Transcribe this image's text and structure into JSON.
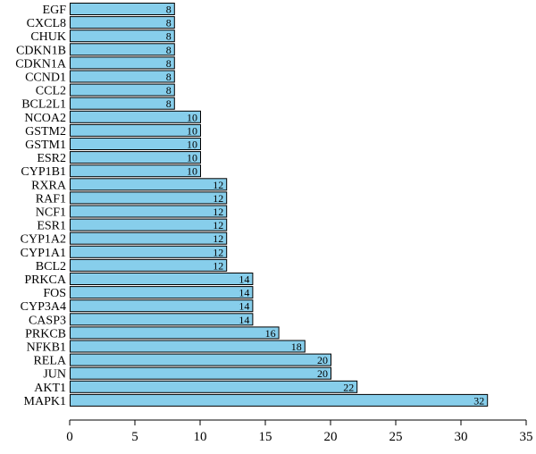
{
  "chart_data": {
    "type": "bar",
    "orientation": "horizontal",
    "categories": [
      "EGF",
      "CXCL8",
      "CHUK",
      "CDKN1B",
      "CDKN1A",
      "CCND1",
      "CCL2",
      "BCL2L1",
      "NCOA2",
      "GSTM2",
      "GSTM1",
      "ESR2",
      "CYP1B1",
      "RXRA",
      "RAF1",
      "NCF1",
      "ESR1",
      "CYP1A2",
      "CYP1A1",
      "BCL2",
      "PRKCA",
      "FOS",
      "CYP3A4",
      "CASP3",
      "PRKCB",
      "NFKB1",
      "RELA",
      "JUN",
      "AKT1",
      "MAPK1"
    ],
    "values": [
      8,
      8,
      8,
      8,
      8,
      8,
      8,
      8,
      10,
      10,
      10,
      10,
      10,
      12,
      12,
      12,
      12,
      12,
      12,
      12,
      14,
      14,
      14,
      14,
      16,
      18,
      20,
      20,
      22,
      32
    ],
    "value_labels": [
      "8",
      "8",
      "8",
      "8",
      "8",
      "8",
      "8",
      "8",
      "10",
      "10",
      "10",
      "10",
      "10",
      "12",
      "12",
      "12",
      "12",
      "12",
      "12",
      "12",
      "14",
      "14",
      "14",
      "14",
      "16",
      "18",
      "20",
      "20",
      "22",
      "32"
    ],
    "xlim": [
      0,
      35
    ],
    "xticks": [
      0,
      5,
      10,
      15,
      20,
      25,
      30,
      35
    ],
    "xtick_labels": [
      "0",
      "5",
      "10",
      "15",
      "20",
      "25",
      "30",
      "35"
    ],
    "title": "",
    "xlabel": "",
    "ylabel": "",
    "grid": false,
    "bar_color": "#87ceeb",
    "bar_edge_color": "#000000"
  }
}
